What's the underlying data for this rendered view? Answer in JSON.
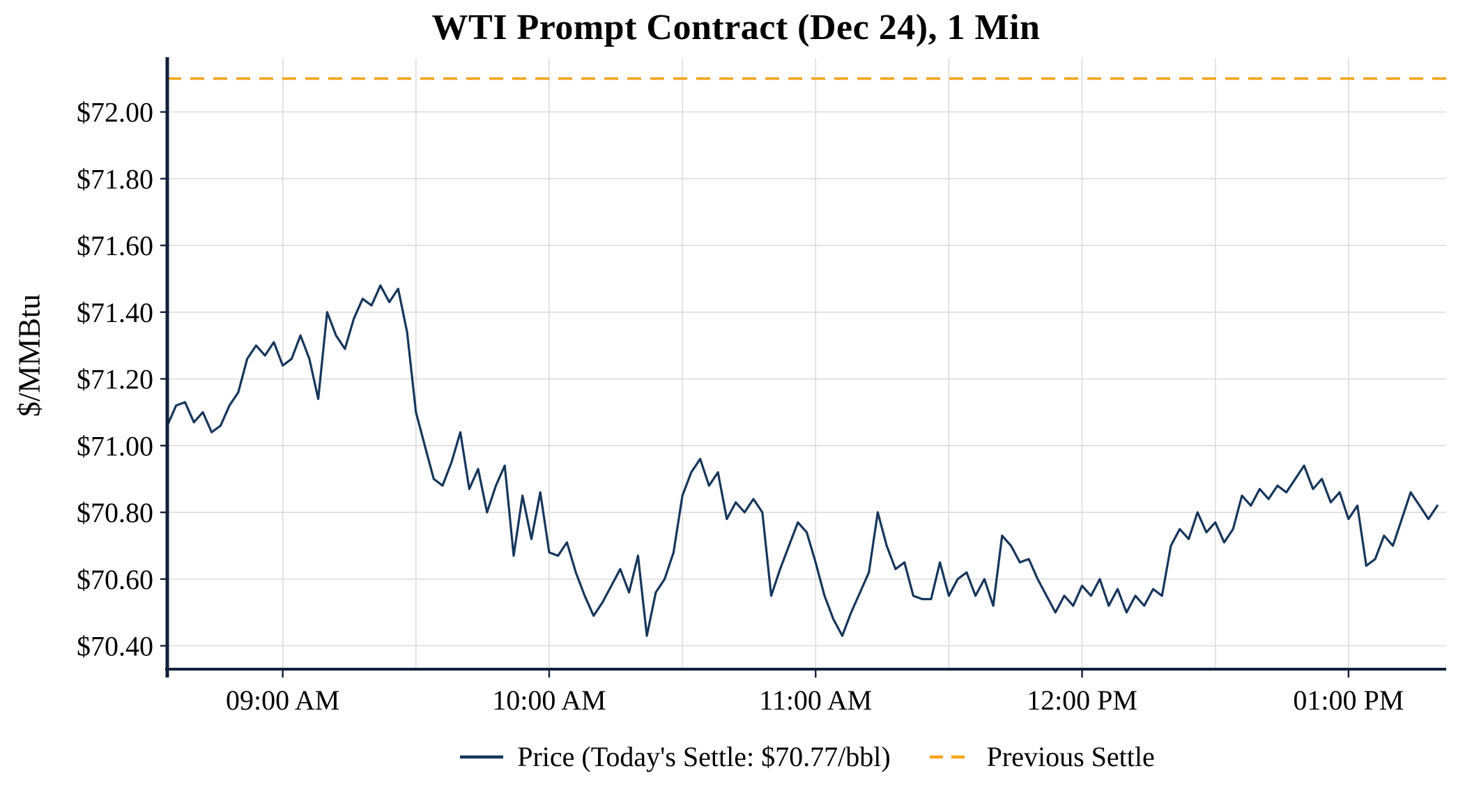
{
  "colors": {
    "price": "#16365c",
    "settle": "#f6a41c",
    "grid": "#dcdcdc",
    "axis": "#12203a",
    "text": "#000000"
  },
  "chart_data": {
    "type": "line",
    "title": "WTI Prompt Contract (Dec 24), 1 Min",
    "xlabel": "",
    "ylabel": "$/MMBtu",
    "ylim": [
      70.33,
      72.16
    ],
    "x_domain_minutes": [
      514,
      802
    ],
    "grid": true,
    "legend_position": "bottom",
    "previous_settle": 72.1,
    "todays_settle": 70.77,
    "x_ticks": [
      {
        "minute": 540,
        "label": "09:00 AM"
      },
      {
        "minute": 600,
        "label": "10:00 AM"
      },
      {
        "minute": 660,
        "label": "11:00 AM"
      },
      {
        "minute": 720,
        "label": "12:00 PM"
      },
      {
        "minute": 780,
        "label": "01:00 PM"
      }
    ],
    "x_grid_minutes": [
      540,
      570,
      600,
      630,
      660,
      690,
      720,
      750,
      780
    ],
    "y_ticks": [
      {
        "value": 70.4,
        "label": "$70.40"
      },
      {
        "value": 70.6,
        "label": "$70.60"
      },
      {
        "value": 70.8,
        "label": "$70.80"
      },
      {
        "value": 71.0,
        "label": "$71.00"
      },
      {
        "value": 71.2,
        "label": "$71.20"
      },
      {
        "value": 71.4,
        "label": "$71.40"
      },
      {
        "value": 71.6,
        "label": "$71.60"
      },
      {
        "value": 71.8,
        "label": "$71.80"
      },
      {
        "value": 72.0,
        "label": "$72.00"
      }
    ],
    "legend": [
      {
        "label": "Price (Today's Settle: $70.77/bbl)",
        "style": "solid"
      },
      {
        "label": "Previous Settle",
        "style": "dashed"
      }
    ],
    "series": [
      {
        "name": "Price",
        "x_start_minute": 514,
        "x_step_minutes": 2,
        "values": [
          71.06,
          71.12,
          71.13,
          71.07,
          71.1,
          71.04,
          71.06,
          71.12,
          71.16,
          71.26,
          71.3,
          71.27,
          71.31,
          71.24,
          71.26,
          71.33,
          71.26,
          71.14,
          71.4,
          71.33,
          71.29,
          71.38,
          71.44,
          71.42,
          71.48,
          71.43,
          71.47,
          71.34,
          71.1,
          71.0,
          70.9,
          70.88,
          70.95,
          71.04,
          70.87,
          70.93,
          70.8,
          70.88,
          70.94,
          70.67,
          70.85,
          70.72,
          70.86,
          70.68,
          70.67,
          70.71,
          70.62,
          70.55,
          70.49,
          70.53,
          70.58,
          70.63,
          70.56,
          70.67,
          70.43,
          70.56,
          70.6,
          70.68,
          70.85,
          70.92,
          70.96,
          70.88,
          70.92,
          70.78,
          70.83,
          70.8,
          70.84,
          70.8,
          70.55,
          70.63,
          70.7,
          70.77,
          70.74,
          70.65,
          70.55,
          70.48,
          70.43,
          70.5,
          70.56,
          70.62,
          70.8,
          70.7,
          70.63,
          70.65,
          70.55,
          70.54,
          70.54,
          70.65,
          70.55,
          70.6,
          70.62,
          70.55,
          70.6,
          70.52,
          70.73,
          70.7,
          70.65,
          70.66,
          70.6,
          70.55,
          70.5,
          70.55,
          70.52,
          70.58,
          70.55,
          70.6,
          70.52,
          70.57,
          70.5,
          70.55,
          70.52,
          70.57,
          70.55,
          70.7,
          70.75,
          70.72,
          70.8,
          70.74,
          70.77,
          70.71,
          70.75,
          70.85,
          70.82,
          70.87,
          70.84,
          70.88,
          70.86,
          70.9,
          70.94,
          70.87,
          70.9,
          70.83,
          70.86,
          70.78,
          70.82,
          70.64,
          70.66,
          70.73,
          70.7,
          70.78,
          70.86,
          70.82,
          70.78,
          70.82
        ]
      },
      {
        "name": "Previous Settle",
        "type": "hline",
        "value": 72.1,
        "style": "dashed"
      }
    ]
  }
}
